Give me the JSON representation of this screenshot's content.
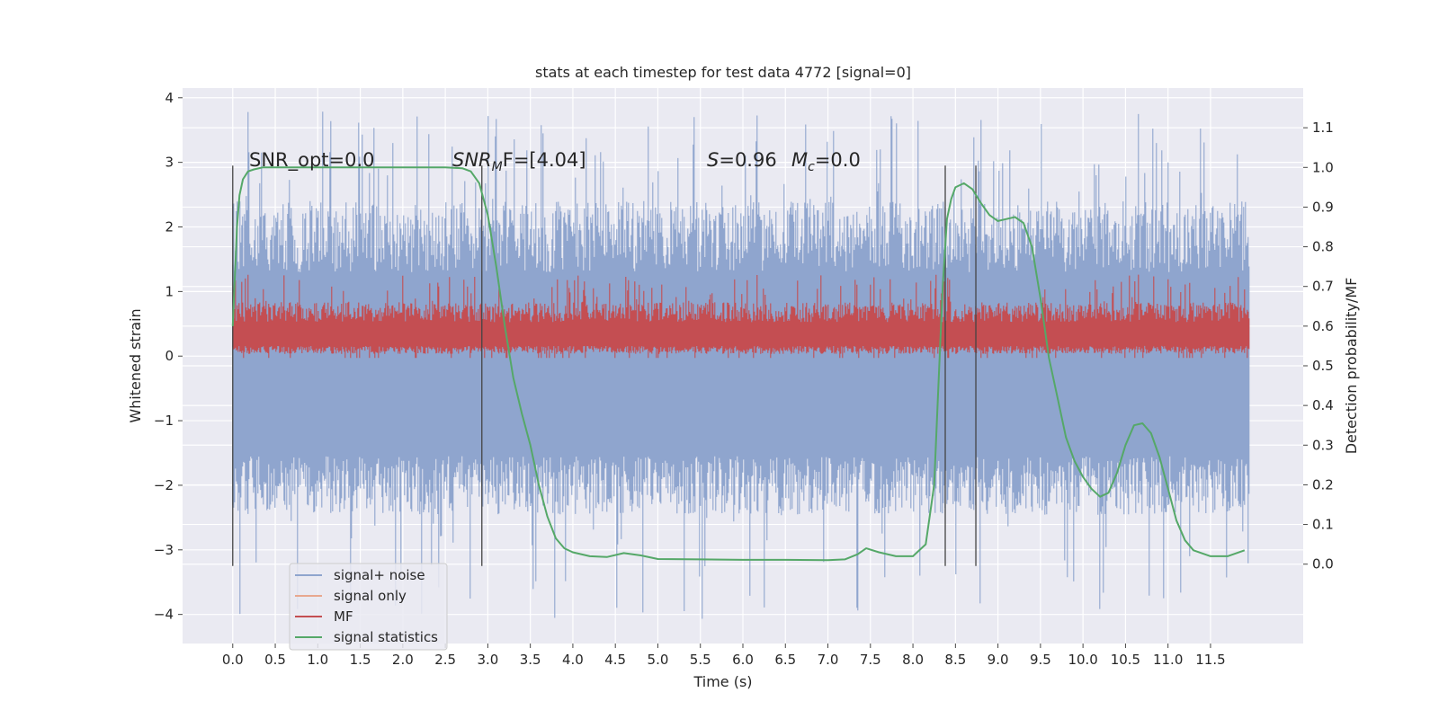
{
  "chart_data": {
    "type": "line",
    "title": "stats at each timestep for test data 4772 [signal=0]",
    "xlabel": "Time (s)",
    "ylabel_left": "Whitened strain",
    "ylabel_right": "Detection probability/MF",
    "xlim": [
      -0.59,
      12.59
    ],
    "ylim_left": [
      -4.45,
      4.15
    ],
    "ylim_right": [
      -0.2,
      1.2
    ],
    "x_ticks": [
      0.0,
      0.5,
      1.0,
      1.5,
      2.0,
      2.5,
      3.0,
      3.5,
      4.0,
      4.5,
      5.0,
      5.5,
      6.0,
      6.5,
      7.0,
      7.5,
      8.0,
      8.5,
      9.0,
      9.5,
      10.0,
      10.5,
      11.0,
      11.5
    ],
    "x_tick_labels": [
      "0.0",
      "0.5",
      "1.0",
      "1.5",
      "2.0",
      "2.5",
      "3.0",
      "3.5",
      "4.0",
      "4.5",
      "5.0",
      "5.5",
      "6.0",
      "6.5",
      "7.0",
      "7.5",
      "8.0",
      "8.5",
      "9.0",
      "9.5",
      "10.0",
      "10.5",
      "11.0",
      "11.5"
    ],
    "y_left_ticks": [
      -4,
      -3,
      -2,
      -1,
      0,
      1,
      2,
      3,
      4
    ],
    "y_left_tick_labels": [
      "−4",
      "−3",
      "−2",
      "−1",
      "0",
      "1",
      "2",
      "3",
      "4"
    ],
    "y_right_ticks": [
      0.0,
      0.1,
      0.2,
      0.3,
      0.4,
      0.5,
      0.6,
      0.7,
      0.8,
      0.9,
      1.0,
      1.1
    ],
    "y_right_tick_labels": [
      "0.0",
      "0.1",
      "0.2",
      "0.3",
      "0.4",
      "0.5",
      "0.6",
      "0.7",
      "0.8",
      "0.9",
      "1.0",
      "1.1"
    ],
    "grid": true,
    "legend_position": "lower-left",
    "series": [
      {
        "name": "signal+ noise",
        "axis": "left",
        "color": "#8fa5ce",
        "kind": "noise-band",
        "x_range": [
          0.0,
          11.96
        ],
        "typical_band": [
          -2.0,
          2.4
        ],
        "extremes": [
          -4.1,
          3.85
        ],
        "note_values_estimated": true
      },
      {
        "name": "signal only",
        "axis": "left",
        "color": "#e8a88f",
        "x": [
          0.0,
          11.96
        ],
        "values": [
          0.0,
          0.0
        ]
      },
      {
        "name": "MF",
        "axis": "right",
        "color": "#c44e52",
        "kind": "noise-band",
        "x_range": [
          0.0,
          11.96
        ],
        "typical_band": [
          0.53,
          0.66
        ],
        "extremes": [
          0.52,
          0.73
        ]
      },
      {
        "name": "signal statistics",
        "axis": "right",
        "color": "#55a868",
        "x": [
          0.0,
          0.02,
          0.05,
          0.08,
          0.12,
          0.18,
          0.25,
          0.35,
          0.5,
          1.0,
          1.5,
          2.0,
          2.5,
          2.7,
          2.8,
          2.9,
          3.0,
          3.1,
          3.2,
          3.3,
          3.4,
          3.5,
          3.6,
          3.7,
          3.8,
          3.9,
          4.0,
          4.2,
          4.4,
          4.6,
          4.8,
          5.0,
          5.5,
          6.0,
          6.5,
          7.0,
          7.2,
          7.35,
          7.45,
          7.6,
          7.8,
          8.0,
          8.15,
          8.25,
          8.3,
          8.35,
          8.4,
          8.45,
          8.5,
          8.6,
          8.7,
          8.8,
          8.9,
          9.0,
          9.1,
          9.2,
          9.3,
          9.4,
          9.5,
          9.6,
          9.7,
          9.8,
          9.9,
          10.0,
          10.1,
          10.2,
          10.3,
          10.4,
          10.5,
          10.6,
          10.7,
          10.8,
          10.9,
          11.0,
          11.1,
          11.2,
          11.3,
          11.5,
          11.7,
          11.9
        ],
        "values": [
          0.6,
          0.7,
          0.85,
          0.93,
          0.97,
          0.99,
          0.995,
          1.0,
          1.0,
          1.0,
          1.0,
          1.0,
          1.0,
          0.998,
          0.99,
          0.96,
          0.88,
          0.75,
          0.6,
          0.47,
          0.38,
          0.3,
          0.2,
          0.12,
          0.065,
          0.04,
          0.03,
          0.02,
          0.018,
          0.028,
          0.022,
          0.013,
          0.012,
          0.011,
          0.011,
          0.01,
          0.012,
          0.025,
          0.04,
          0.03,
          0.02,
          0.02,
          0.05,
          0.2,
          0.45,
          0.7,
          0.87,
          0.92,
          0.95,
          0.96,
          0.945,
          0.91,
          0.88,
          0.865,
          0.87,
          0.875,
          0.86,
          0.8,
          0.67,
          0.52,
          0.42,
          0.32,
          0.26,
          0.22,
          0.19,
          0.17,
          0.18,
          0.23,
          0.3,
          0.35,
          0.355,
          0.33,
          0.27,
          0.19,
          0.11,
          0.06,
          0.035,
          0.02,
          0.02,
          0.035
        ]
      }
    ],
    "vertical_lines": [
      0.0,
      2.93,
      8.38,
      8.74
    ],
    "annotations": [
      {
        "id": "snr-opt",
        "text": "SNR_opt=0.0",
        "x": 0.22,
        "y": 2.85
      },
      {
        "id": "snr-mf",
        "text": "SNR_MF=[4.04]",
        "base": "SNR",
        "sub": "M",
        "after": "F=[4.04]",
        "x": 2.6,
        "y": 2.85
      },
      {
        "id": "s-val",
        "text": "S=0.96",
        "main": "S",
        "after": "=0.96",
        "x": 5.6,
        "y": 2.85
      },
      {
        "id": "mc-val",
        "text": "Mc=0.0",
        "main": "M",
        "sub": "c",
        "after": "=0.0",
        "x": 6.6,
        "y": 2.85
      }
    ]
  }
}
